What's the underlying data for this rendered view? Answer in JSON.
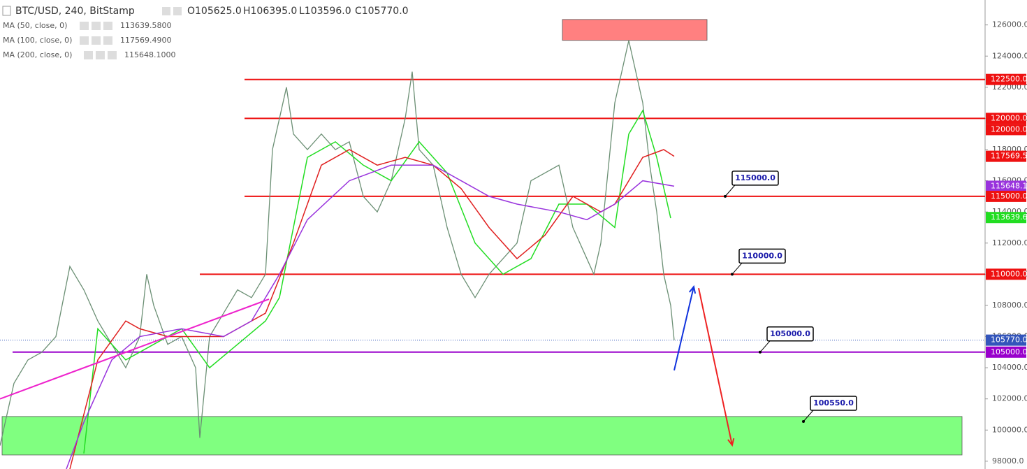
{
  "chart_data": {
    "type": "line",
    "title": "BTC/USD, 240, BitStamp",
    "ohlc_labels": [
      "O105625.0",
      "H106395.0",
      "L103596.0",
      "C105770.0"
    ],
    "xlim": [
      0,
      141
    ],
    "ylim": [
      97500,
      127600
    ],
    "yticks": [
      {
        "value": 98000,
        "label": "98000.0"
      },
      {
        "value": 100000,
        "label": "100000.0"
      },
      {
        "value": 102000,
        "label": "102000.0"
      },
      {
        "value": 104000,
        "label": "104000.0"
      },
      {
        "value": 106000,
        "label": "106000.0"
      },
      {
        "value": 108000,
        "label": "108000.0"
      },
      {
        "value": 110000,
        "label": "110000.0"
      },
      {
        "value": 112000,
        "label": "112000.0"
      },
      {
        "value": 114000,
        "label": "114000.0"
      },
      {
        "value": 116000,
        "label": "116000.0"
      },
      {
        "value": 118000,
        "label": "118000.0"
      },
      {
        "value": 120000,
        "label": "120000.0"
      },
      {
        "value": 122000,
        "label": "122000.0"
      },
      {
        "value": 124000,
        "label": "124000.0"
      },
      {
        "value": 126000,
        "label": "126000.0"
      }
    ],
    "series": [
      {
        "name": "BTC/USD",
        "color": "#6b8f74",
        "x": [
          0,
          2,
          4,
          6,
          8,
          10,
          12,
          14,
          16,
          18,
          20,
          21,
          22,
          24,
          26,
          28,
          28.6,
          30,
          32,
          34,
          36,
          38,
          39,
          40,
          41,
          42,
          44,
          46,
          48,
          50,
          52,
          54,
          56,
          58,
          59,
          60,
          62,
          64,
          66,
          68,
          70,
          72,
          74,
          76,
          78,
          80,
          82,
          84,
          85,
          86,
          88,
          90,
          92,
          93,
          94,
          95,
          96,
          96.5
        ],
        "values": [
          99000,
          103000,
          104500,
          105000,
          106000,
          110500,
          109000,
          107000,
          105500,
          104000,
          106000,
          110000,
          108000,
          105500,
          106000,
          104000,
          99500,
          106000,
          107500,
          109000,
          108500,
          110000,
          118000,
          120000,
          122000,
          119000,
          118000,
          119000,
          118000,
          118500,
          115000,
          114000,
          116000,
          120000,
          123000,
          118000,
          117000,
          113000,
          110000,
          108500,
          110000,
          111000,
          112000,
          116000,
          116500,
          117000,
          113000,
          111000,
          110000,
          112000,
          121000,
          125000,
          121000,
          117000,
          114000,
          110000,
          108000,
          105770
        ]
      },
      {
        "name": "MA (50, close, 0)",
        "legend_value": "113639.5800",
        "color": "#22dd22",
        "x": [
          12,
          14,
          18,
          22,
          26,
          30,
          34,
          38,
          40,
          42,
          44,
          48,
          52,
          56,
          60,
          64,
          68,
          72,
          76,
          80,
          84,
          88,
          90,
          92,
          94,
          96
        ],
        "values": [
          98500,
          106500,
          104500,
          105500,
          106500,
          104000,
          105500,
          107000,
          108500,
          113000,
          117500,
          118500,
          117000,
          116000,
          118500,
          116500,
          112000,
          110000,
          111000,
          114500,
          114500,
          113000,
          119000,
          120500,
          117500,
          113600
        ]
      },
      {
        "name": "MA (100, close, 0)",
        "legend_value": "117569.4900",
        "color": "#e02020",
        "x": [
          10,
          14,
          18,
          20,
          24,
          28,
          32,
          36,
          38,
          42,
          46,
          50,
          54,
          58,
          62,
          66,
          70,
          74,
          78,
          82,
          86,
          88,
          92,
          95,
          96.5
        ],
        "values": [
          97500,
          104500,
          107000,
          106500,
          106000,
          106000,
          106000,
          107000,
          107500,
          112000,
          117000,
          118000,
          117000,
          117500,
          117000,
          115500,
          113000,
          111000,
          112500,
          115000,
          114000,
          114500,
          117500,
          118000,
          117570
        ]
      },
      {
        "name": "MA (200, close, 0)",
        "legend_value": "115648.1000",
        "color": "#9933dd",
        "x": [
          9.5,
          12,
          16,
          20,
          26,
          32,
          36,
          40,
          44,
          50,
          56,
          62,
          66,
          70,
          74,
          80,
          84,
          88,
          92,
          96.5
        ],
        "values": [
          97500,
          100500,
          104500,
          106000,
          106500,
          106000,
          107000,
          110000,
          113500,
          116000,
          117000,
          117000,
          116000,
          115000,
          114500,
          114000,
          113500,
          114500,
          116000,
          115650
        ]
      }
    ],
    "levels": [
      {
        "value": 122500,
        "x": [
          35,
          141
        ],
        "color": "#ee1111"
      },
      {
        "value": 120000,
        "x": [
          35,
          141
        ],
        "color": "#ee1111"
      },
      {
        "value": 115000,
        "x": [
          35,
          141
        ],
        "color": "#ee1111"
      },
      {
        "value": 110000,
        "x": [
          28.6,
          141
        ],
        "color": "#ee1111"
      },
      {
        "value": 105000,
        "x": [
          1.8,
          141
        ],
        "color": "#9900cc"
      },
      {
        "value": 105770,
        "x": [
          0,
          141
        ],
        "color": "#3355bb"
      }
    ],
    "trendline": {
      "x": [
        0,
        38.5
      ],
      "values": [
        102000,
        108400
      ],
      "color": "#ee22cc"
    },
    "arrows": [
      {
        "x": [
          96.5,
          99.3
        ],
        "values": [
          103830,
          109200
        ],
        "color": "#1133dd"
      },
      {
        "x": [
          100,
          104.8
        ],
        "values": [
          109110,
          99030
        ],
        "color": "#ee2222"
      }
    ],
    "zones": [
      {
        "x": [
          80.5,
          101.2
        ],
        "values": [
          125010,
          126350
        ],
        "color": "#ff8080"
      },
      {
        "x": [
          0.3,
          137.7
        ],
        "values": [
          98400,
          100870
        ],
        "color": "#80ff80"
      }
    ],
    "callouts": [
      {
        "x": 103.8,
        "value": 115000,
        "label": "115000.0"
      },
      {
        "x": 104.8,
        "value": 110000,
        "label": "110000.0"
      },
      {
        "x": 108.8,
        "value": 105000,
        "label": "105000.0"
      },
      {
        "x": 115,
        "value": 100550,
        "label": "100550.0"
      }
    ],
    "price_labels": [
      {
        "value": 122500,
        "label": "122500.0",
        "color": "#ee1111"
      },
      {
        "value": 120000,
        "label": "120000.0",
        "color": "#ee1111"
      },
      {
        "value": 120000,
        "label": "120000.0",
        "color": "#ee1111",
        "offset": true
      },
      {
        "value": 117569.5,
        "label": "117569.5",
        "color": "#ee1111"
      },
      {
        "value": 115648.1,
        "label": "115648.1",
        "color": "#9933dd"
      },
      {
        "value": 115000,
        "label": "115000.0",
        "color": "#ee1111"
      },
      {
        "value": 113639.6,
        "label": "113639.6",
        "color": "#22dd22"
      },
      {
        "value": 110000,
        "label": "110000.0",
        "color": "#ee1111"
      },
      {
        "value": 105770,
        "label": "105770.0",
        "color": "#3355bb"
      },
      {
        "value": 105000,
        "label": "105000.0",
        "color": "#9900cc"
      }
    ]
  }
}
